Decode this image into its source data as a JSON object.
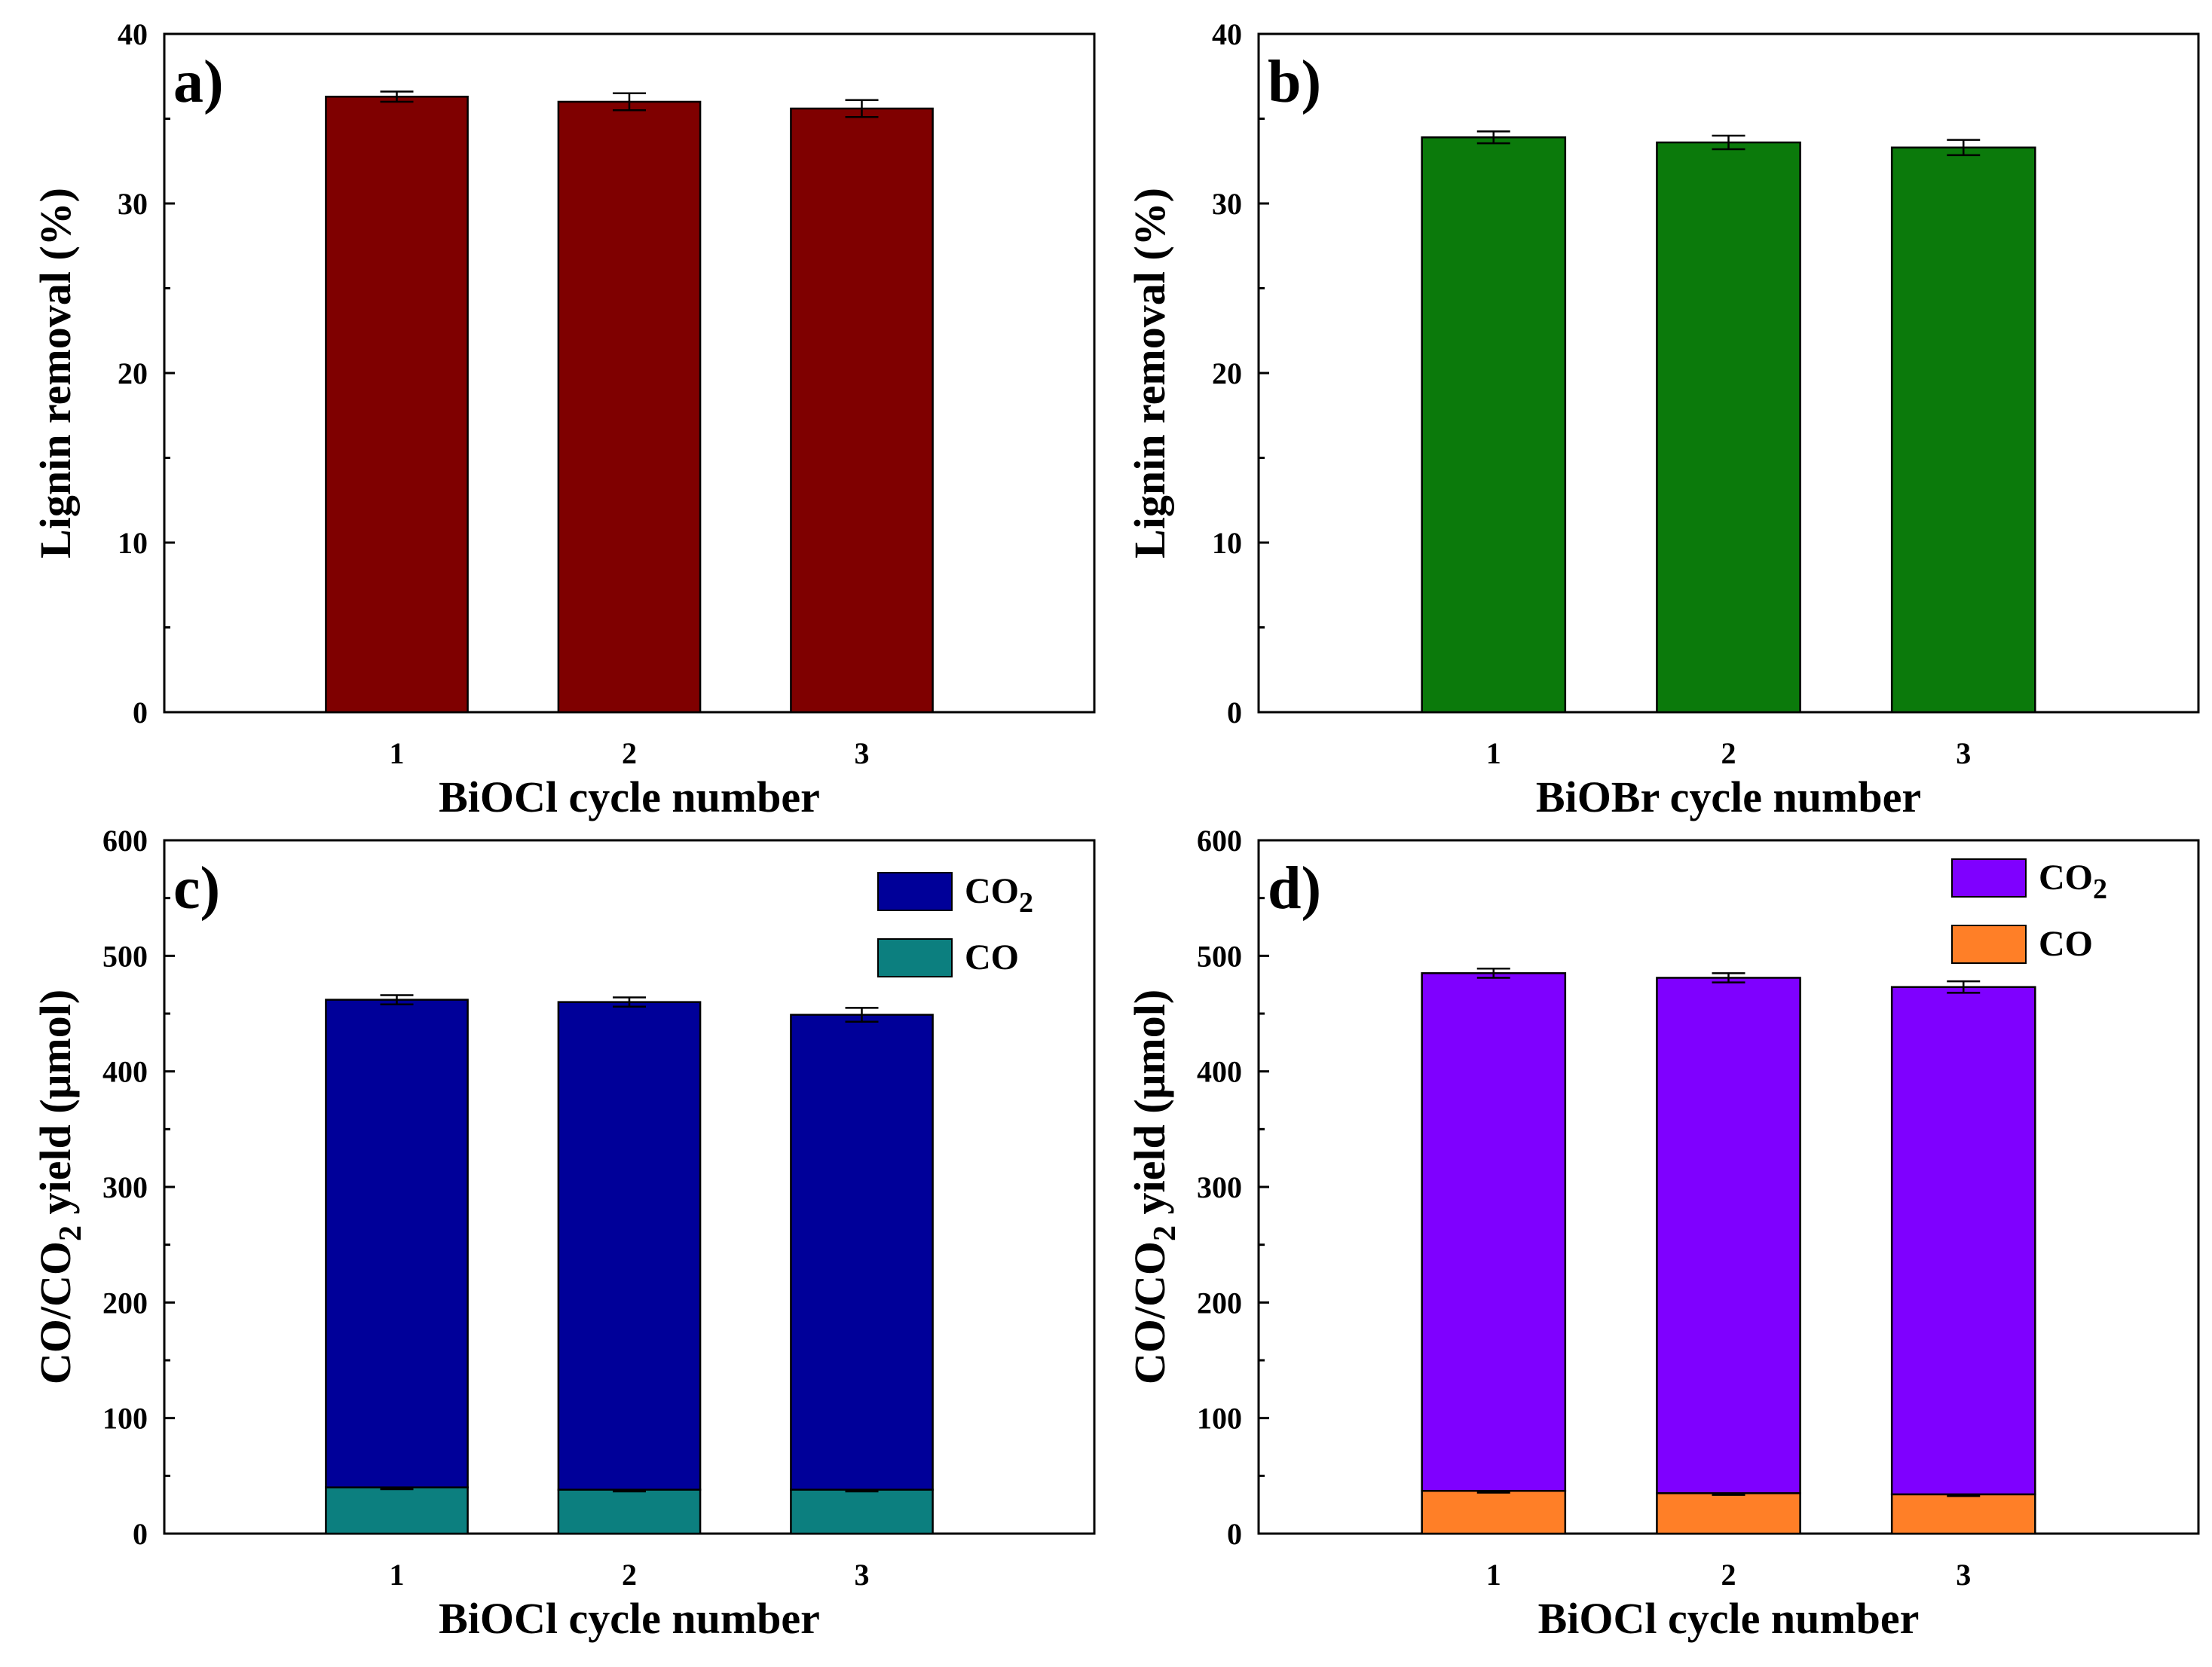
{
  "chart_data": [
    {
      "panel_label": "a)",
      "type": "bar",
      "categories": [
        "1",
        "2",
        "3"
      ],
      "values": [
        36.3,
        36.0,
        35.6
      ],
      "errors": [
        0.3,
        0.5,
        0.5
      ],
      "bar_color": "#7f0000",
      "xlabel": "BiOCl cycle number",
      "ylabel": "Lignin removal (%)",
      "ylim": [
        0,
        40
      ],
      "yticks": [
        "0",
        "10",
        "20",
        "30",
        "40"
      ]
    },
    {
      "panel_label": "b)",
      "type": "bar",
      "categories": [
        "1",
        "2",
        "3"
      ],
      "values": [
        33.9,
        33.6,
        33.3
      ],
      "errors": [
        0.35,
        0.4,
        0.45
      ],
      "bar_color": "#0b7a0b",
      "xlabel": "BiOBr cycle number",
      "ylabel": "Lignin removal (%)",
      "ylim": [
        0,
        40
      ],
      "yticks": [
        "0",
        "10",
        "20",
        "30",
        "40"
      ]
    },
    {
      "panel_label": "c)",
      "type": "bar",
      "stacked": true,
      "categories": [
        "1",
        "2",
        "3"
      ],
      "series": [
        {
          "name": "CO",
          "color": "#0c7f7f",
          "values": [
            40,
            38,
            38
          ],
          "errors": [
            1.5,
            1.5,
            1.5
          ]
        },
        {
          "name": "CO2",
          "color": "#000099",
          "values": [
            422,
            422,
            411
          ],
          "errors": [
            4,
            4,
            6
          ]
        }
      ],
      "legend": [
        {
          "label": "CO",
          "sub": "2",
          "color": "#000099"
        },
        {
          "label": "CO",
          "sub": "",
          "color": "#0c7f7f"
        }
      ],
      "xlabel": "BiOCl cycle number",
      "ylabel": {
        "a": "CO/CO",
        "sub": "2",
        "b": " yield (μmol)"
      },
      "ylim": [
        0,
        600
      ],
      "yticks": [
        "0",
        "100",
        "200",
        "300",
        "400",
        "500",
        "600"
      ]
    },
    {
      "panel_label": "d)",
      "type": "bar",
      "stacked": true,
      "categories": [
        "1",
        "2",
        "3"
      ],
      "series": [
        {
          "name": "CO",
          "color": "#ff7f27",
          "values": [
            37,
            35,
            34
          ],
          "errors": [
            1.5,
            1.5,
            1.5
          ]
        },
        {
          "name": "CO2",
          "color": "#7f00ff",
          "values": [
            448,
            446,
            439
          ],
          "errors": [
            4,
            4,
            5
          ]
        }
      ],
      "legend": [
        {
          "label": "CO",
          "sub": "2",
          "color": "#7f00ff"
        },
        {
          "label": "CO",
          "sub": "",
          "color": "#ff7f27"
        }
      ],
      "xlabel": "BiOCl cycle number",
      "ylabel": {
        "a": "CO/CO",
        "sub": "2",
        "b": " yield (μmol)"
      },
      "ylim": [
        0,
        600
      ],
      "yticks": [
        "0",
        "100",
        "200",
        "300",
        "400",
        "500",
        "600"
      ]
    }
  ]
}
